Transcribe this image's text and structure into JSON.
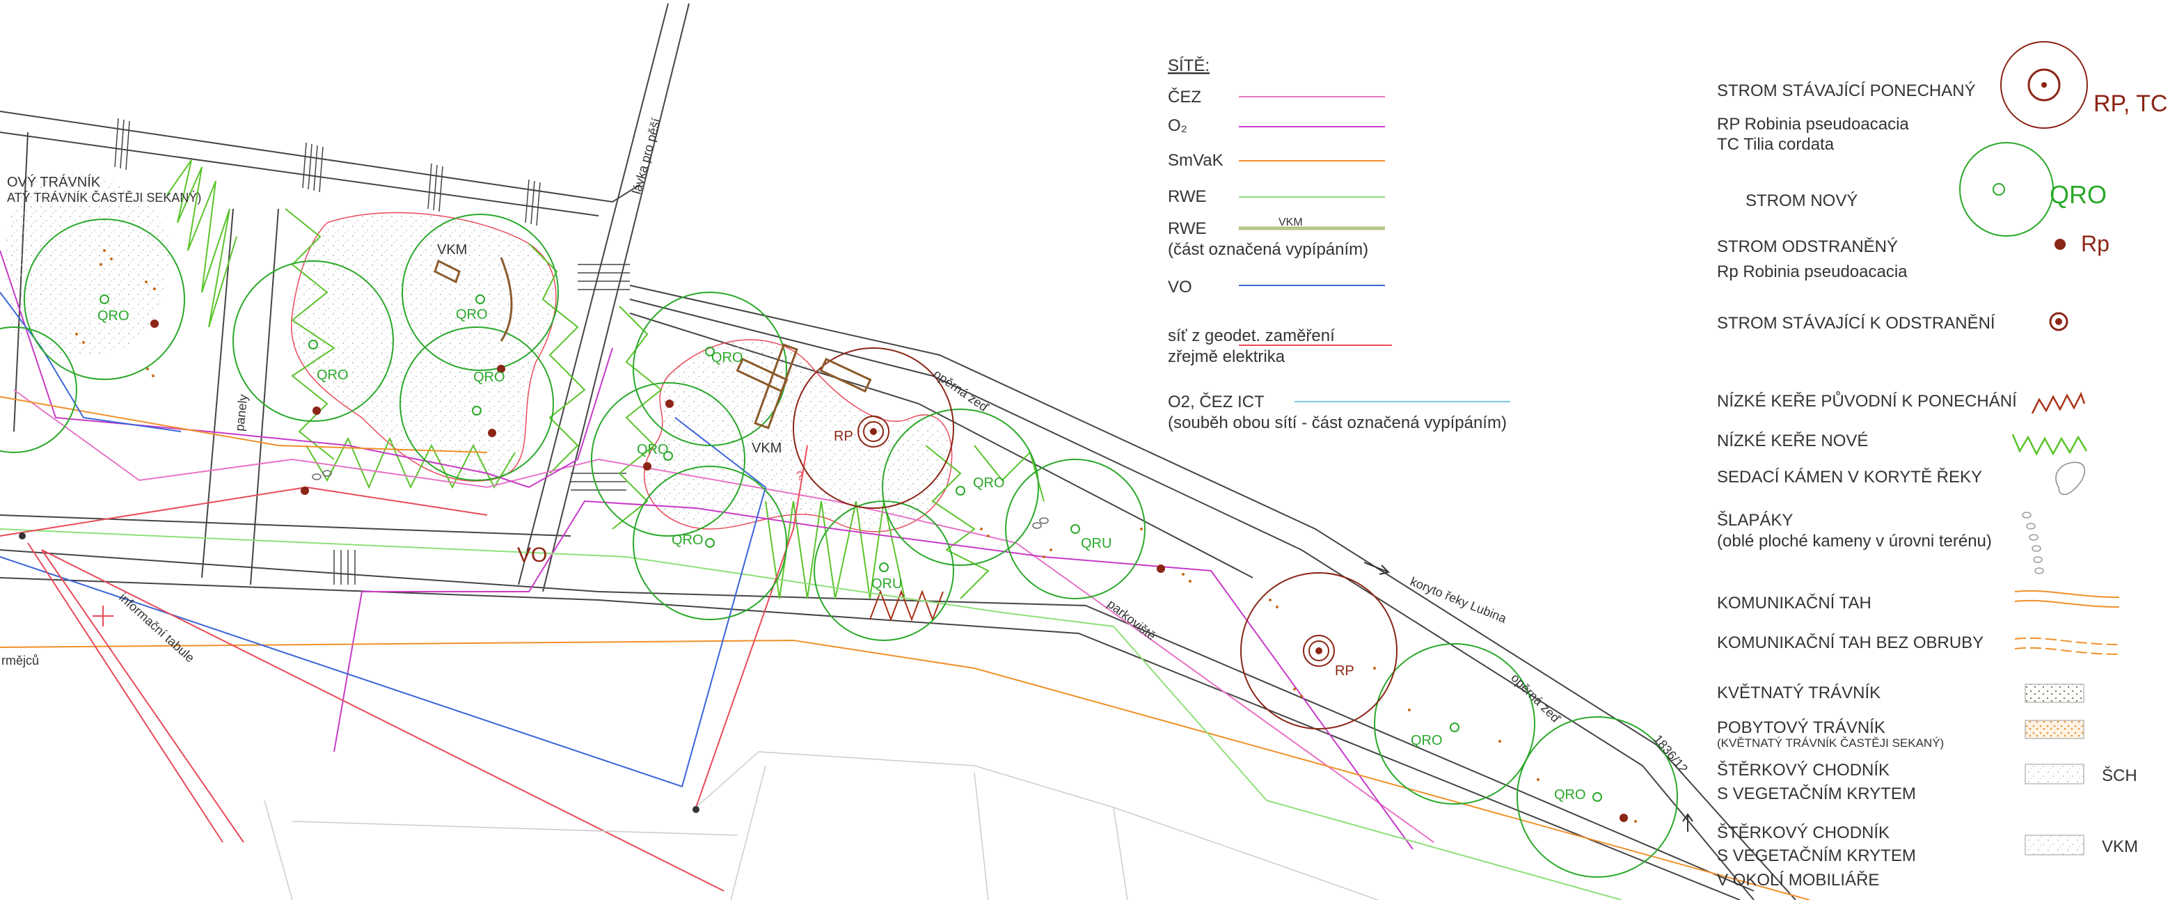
{
  "colors": {
    "cez": "#e873c8",
    "o2": "#c83ac8",
    "smvak": "#f0902a",
    "rwe": "#8fe07a",
    "rwe_vkm": "#c8b48c",
    "vo": "#3a64d8",
    "geodet": "#e84a5a",
    "o2_cez_ict": "#7ec8e8",
    "tree_existing": "#8b2515",
    "tree_new": "#2aa82a",
    "shrub_old": "#a83215",
    "shrub_new": "#5ac42a",
    "path_orange": "#f0902a",
    "linework": "#444444"
  },
  "networks": {
    "title": "SÍTĚ:",
    "cez": "ČEZ",
    "o2": "O₂",
    "smvak": "SmVaK",
    "rwe": "RWE",
    "rwe2": "RWE",
    "rwe2_tag": "VKM",
    "rwe2_note": "(část označená vypípáním)",
    "vo": "VO",
    "geodet_line1": "síť z geodet. zaměření",
    "geodet_line2": "zřejmě elektrika",
    "ict_line1": "O2, ČEZ ICT",
    "ict_line2": "(souběh obou sítí - část označená vypípáním)"
  },
  "legend": {
    "tree_keep": "STROM STÁVAJÍCÍ PONECHANÝ",
    "tree_keep_abbr": "RP, TC",
    "tree_keep_sp1": "RP Robinia pseudoacacia",
    "tree_keep_sp2": "TC Tilia cordata",
    "tree_new": "STROM NOVÝ",
    "tree_new_abbr": "QRO",
    "tree_removed": "STROM ODSTRANĚNÝ",
    "tree_removed_abbr": "Rp",
    "tree_removed_sp": "Rp Robinia pseudoacacia",
    "tree_to_remove": "STROM STÁVAJÍCÍ  K ODSTRANĚNÍ",
    "shrub_old": "NÍZKÉ KEŘE PŮVODNÍ K PONECHÁNÍ",
    "shrub_new": "NÍZKÉ KEŘE NOVÉ",
    "stone": "SEDACÍ KÁMEN V KORYTĚ ŘEKY",
    "stepping_1": "ŠLAPÁKY",
    "stepping_2": "(oblé ploché kameny v úrovni terénu)",
    "path": "KOMUNIKAČNÍ TAH",
    "path_no_curb": "KOMUNIKAČNÍ TAH BEZ OBRUBY",
    "meadow": "KVĚTNATÝ TRÁVNÍK",
    "lawn_1": "POBYTOVÝ TRÁVNÍK",
    "lawn_2": "(KVĚTNATÝ TRÁVNÍK ČASTĚJI SEKANÝ)",
    "gravel_1": "ŠTĚRKOVÝ CHODNÍK",
    "gravel_2": "S VEGETAČNÍM KRYTEM",
    "gravel_abbr": "ŠCH",
    "gravel_mob_1": "ŠTĚRKOVÝ CHODNÍK",
    "gravel_mob_2": "S VEGETAČNÍM KRYTEM",
    "gravel_mob_3": "V OKOLÍ MOBILIÁŘE",
    "gravel_mob_abbr": "VKM"
  },
  "plan": {
    "lawn_top": "OVÝ TRÁVNÍK",
    "lawn_sub": "ATÝ TRÁVNÍK ČASTĚJI SEKANÝ)",
    "qro": "QRO",
    "qru": "QRU",
    "rp": "RP",
    "vkm": "VKM",
    "vo": "VO",
    "paneely": "panely",
    "lavka": "lávka pro pěší",
    "info": "informační tabule",
    "rmeju": "rmějců",
    "wall": "opěrná zeď",
    "river": "koryto řeky Lubina",
    "parking": "parkoviště",
    "parcel": "1836/12",
    "question": "?"
  }
}
